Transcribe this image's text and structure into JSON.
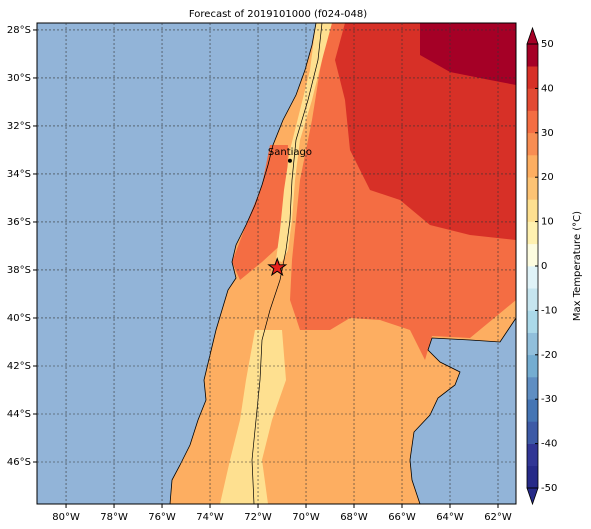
{
  "map": {
    "title": "Forecast of 2019101000 (f024-048)",
    "xlim": [
      -81.21,
      -61.25
    ],
    "ylim": [
      -47.75,
      -27.71
    ],
    "xticks": [
      {
        "value": -80,
        "label": "80°W"
      },
      {
        "value": -78,
        "label": "78°W"
      },
      {
        "value": -76,
        "label": "76°W"
      },
      {
        "value": -74,
        "label": "74°W"
      },
      {
        "value": -72,
        "label": "72°W"
      },
      {
        "value": -70,
        "label": "70°W"
      },
      {
        "value": -68,
        "label": "68°W"
      },
      {
        "value": -66,
        "label": "66°W"
      },
      {
        "value": -64,
        "label": "64°W"
      },
      {
        "value": -62,
        "label": "62°W"
      }
    ],
    "yticks": [
      {
        "value": -28,
        "label": "28°S"
      },
      {
        "value": -30,
        "label": "30°S"
      },
      {
        "value": -32,
        "label": "32°S"
      },
      {
        "value": -34,
        "label": "34°S"
      },
      {
        "value": -36,
        "label": "36°S"
      },
      {
        "value": -38,
        "label": "38°S"
      },
      {
        "value": -40,
        "label": "40°S"
      },
      {
        "value": -42,
        "label": "42°S"
      },
      {
        "value": -44,
        "label": "44°S"
      },
      {
        "value": -46,
        "label": "46°S"
      }
    ],
    "grid": true,
    "colorbar": {
      "label": "Max Temperature (°C)",
      "lim": [
        -50,
        50
      ],
      "ticks": [
        -50,
        -40,
        -30,
        -20,
        -10,
        0,
        10,
        20,
        30,
        40,
        50
      ],
      "colors": [
        "#262a88",
        "#313695",
        "#3d5aa6",
        "#4575b4",
        "#5f8ec2",
        "#74add1",
        "#91bfdb",
        "#abd9e9",
        "#c6e5ef",
        "#e0f3f8",
        "#fdfce0",
        "#fff1b0",
        "#fee090",
        "#fdc374",
        "#fdae61",
        "#f88d52",
        "#f46d43",
        "#e34a33",
        "#d73027",
        "#a50026"
      ]
    },
    "places": [
      {
        "name": "Santiago",
        "lon": -70.67,
        "lat": -33.45
      }
    ],
    "marker": {
      "lon": -71.2,
      "lat": -37.9
    }
  }
}
